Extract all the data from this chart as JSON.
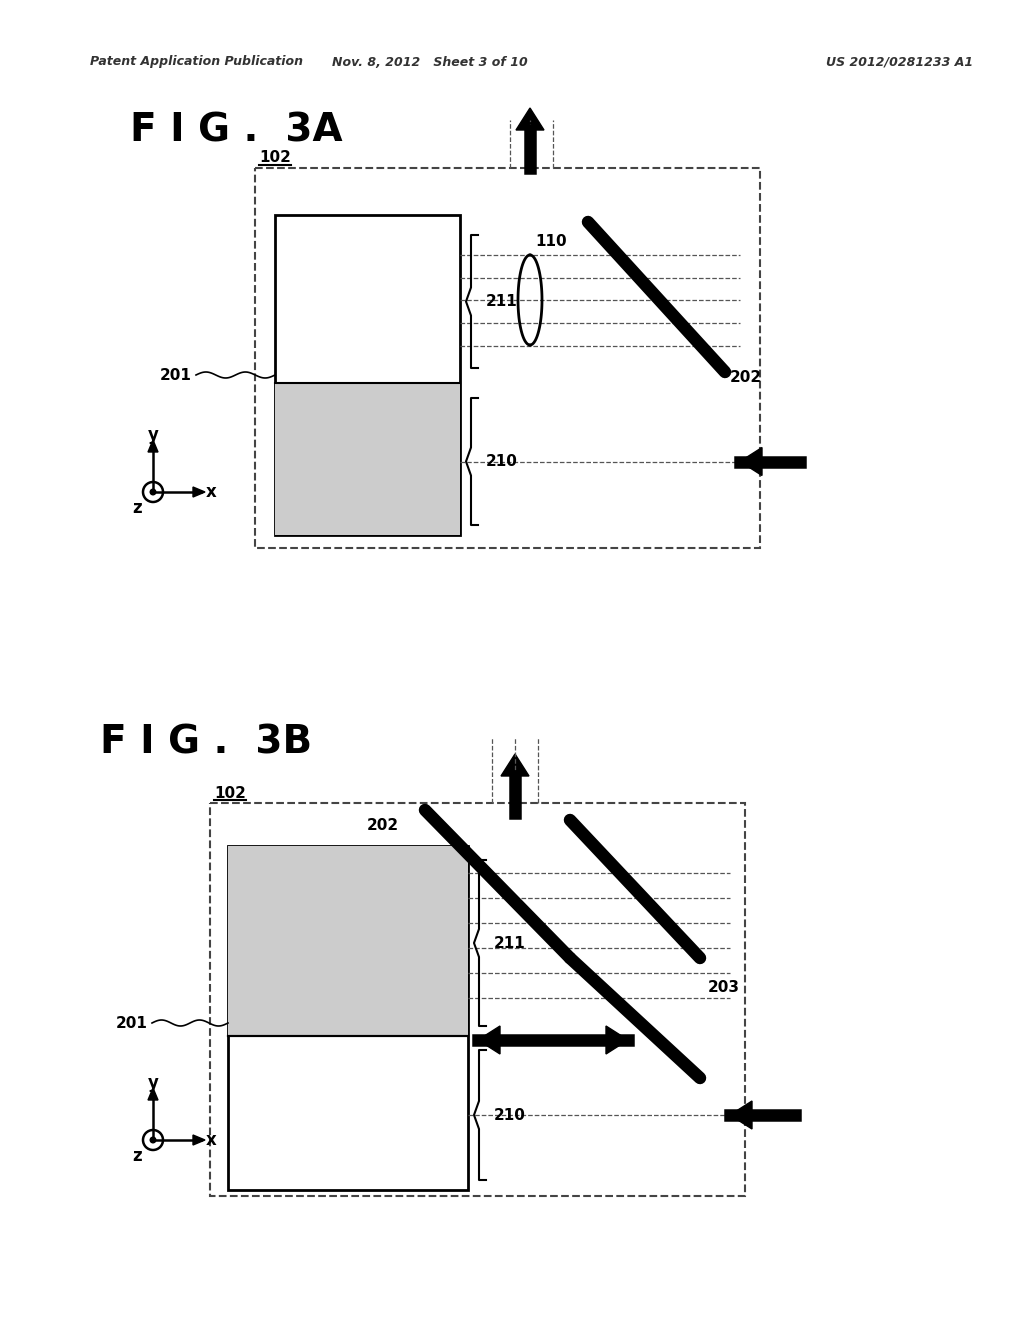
{
  "bg_color": "#ffffff",
  "header_left": "Patent Application Publication",
  "header_mid": "Nov. 8, 2012   Sheet 3 of 10",
  "header_right": "US 2012/0281233 A1",
  "fig3a_title": "F I G .  3A",
  "fig3b_title": "F I G .  3B",
  "line_color": "#000000",
  "dashed_color": "#555555"
}
